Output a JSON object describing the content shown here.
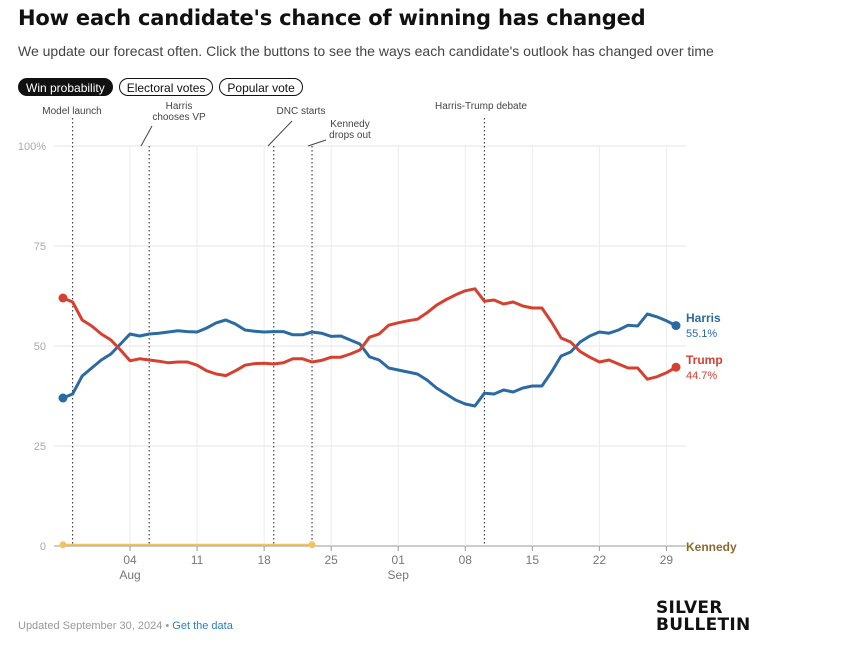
{
  "title": "How each candidate's chance of winning has changed",
  "subtitle": "We update our forecast often. Click the buttons to see the ways each candidate's outlook has changed over time",
  "tabs": [
    {
      "label": "Win probability",
      "active": true
    },
    {
      "label": "Electoral votes",
      "active": false
    },
    {
      "label": "Popular vote",
      "active": false
    }
  ],
  "footer": {
    "updated": "Updated September 30, 2024",
    "separator": " • ",
    "link_label": "Get the data"
  },
  "logo": {
    "line1": "SILVER",
    "line2": "BULLETIN"
  },
  "chart_data": {
    "type": "line",
    "ylim": [
      0,
      100
    ],
    "xlim": [
      "2024-07-28",
      "2024-09-30"
    ],
    "y_ticks": [
      0,
      25,
      50,
      75,
      100
    ],
    "y_tick_labels": [
      "0",
      "25",
      "50",
      "75",
      "100%"
    ],
    "x_ticks": [
      {
        "date": "2024-08-04",
        "label": "04",
        "month": "Aug"
      },
      {
        "date": "2024-08-11",
        "label": "11",
        "month": ""
      },
      {
        "date": "2024-08-18",
        "label": "18",
        "month": ""
      },
      {
        "date": "2024-08-25",
        "label": "25",
        "month": ""
      },
      {
        "date": "2024-09-01",
        "label": "01",
        "month": "Sep"
      },
      {
        "date": "2024-09-08",
        "label": "08",
        "month": ""
      },
      {
        "date": "2024-09-15",
        "label": "15",
        "month": ""
      },
      {
        "date": "2024-09-22",
        "label": "22",
        "month": ""
      },
      {
        "date": "2024-09-29",
        "label": "29",
        "month": ""
      }
    ],
    "annotations": [
      {
        "date": "2024-07-29",
        "lines": [
          "Model launch"
        ]
      },
      {
        "date": "2024-08-06",
        "lines": [
          "Harris",
          "chooses VP"
        ]
      },
      {
        "date": "2024-08-19",
        "lines": [
          "DNC starts"
        ]
      },
      {
        "date": "2024-08-23",
        "lines": [
          "Kennedy",
          "drops out"
        ]
      },
      {
        "date": "2024-09-10",
        "lines": [
          "Harris-Trump debate"
        ]
      }
    ],
    "series": [
      {
        "name": "Harris",
        "color": "#2b6aa3",
        "last_label": "55.1%",
        "points": [
          [
            "2024-07-28",
            37.0
          ],
          [
            "2024-07-29",
            38.0
          ],
          [
            "2024-07-30",
            42.5
          ],
          [
            "2024-07-31",
            44.5
          ],
          [
            "2024-08-01",
            46.5
          ],
          [
            "2024-08-02",
            48.0
          ],
          [
            "2024-08-03",
            50.5
          ],
          [
            "2024-08-04",
            53.0
          ],
          [
            "2024-08-05",
            52.5
          ],
          [
            "2024-08-06",
            53.0
          ],
          [
            "2024-08-07",
            53.2
          ],
          [
            "2024-08-08",
            53.5
          ],
          [
            "2024-08-09",
            53.8
          ],
          [
            "2024-08-10",
            53.6
          ],
          [
            "2024-08-11",
            53.5
          ],
          [
            "2024-08-12",
            54.5
          ],
          [
            "2024-08-13",
            55.8
          ],
          [
            "2024-08-14",
            56.5
          ],
          [
            "2024-08-15",
            55.5
          ],
          [
            "2024-08-16",
            54.0
          ],
          [
            "2024-08-17",
            53.7
          ],
          [
            "2024-08-18",
            53.5
          ],
          [
            "2024-08-19",
            53.6
          ],
          [
            "2024-08-20",
            53.6
          ],
          [
            "2024-08-21",
            52.8
          ],
          [
            "2024-08-22",
            52.8
          ],
          [
            "2024-08-23",
            53.5
          ],
          [
            "2024-08-24",
            53.2
          ],
          [
            "2024-08-25",
            52.4
          ],
          [
            "2024-08-26",
            52.5
          ],
          [
            "2024-08-27",
            51.5
          ],
          [
            "2024-08-28",
            50.5
          ],
          [
            "2024-08-29",
            47.3
          ],
          [
            "2024-08-30",
            46.5
          ],
          [
            "2024-08-31",
            44.5
          ],
          [
            "2024-09-01",
            44.0
          ],
          [
            "2024-09-02",
            43.5
          ],
          [
            "2024-09-03",
            43.0
          ],
          [
            "2024-09-04",
            41.5
          ],
          [
            "2024-09-05",
            39.5
          ],
          [
            "2024-09-06",
            38.0
          ],
          [
            "2024-09-07",
            36.5
          ],
          [
            "2024-09-08",
            35.5
          ],
          [
            "2024-09-09",
            35.0
          ],
          [
            "2024-09-10",
            38.2
          ],
          [
            "2024-09-11",
            38.0
          ],
          [
            "2024-09-12",
            39.0
          ],
          [
            "2024-09-13",
            38.5
          ],
          [
            "2024-09-14",
            39.5
          ],
          [
            "2024-09-15",
            40.0
          ],
          [
            "2024-09-16",
            40.0
          ],
          [
            "2024-09-17",
            43.5
          ],
          [
            "2024-09-18",
            47.5
          ],
          [
            "2024-09-19",
            48.5
          ],
          [
            "2024-09-20",
            51.0
          ],
          [
            "2024-09-21",
            52.5
          ],
          [
            "2024-09-22",
            53.5
          ],
          [
            "2024-09-23",
            53.2
          ],
          [
            "2024-09-24",
            54.0
          ],
          [
            "2024-09-25",
            55.2
          ],
          [
            "2024-09-26",
            55.0
          ],
          [
            "2024-09-27",
            58.0
          ],
          [
            "2024-09-28",
            57.3
          ],
          [
            "2024-09-29",
            56.3
          ],
          [
            "2024-09-30",
            55.1
          ]
        ]
      },
      {
        "name": "Trump",
        "color": "#d6402f",
        "last_label": "44.7%",
        "points": [
          [
            "2024-07-28",
            62.0
          ],
          [
            "2024-07-29",
            61.0
          ],
          [
            "2024-07-30",
            56.5
          ],
          [
            "2024-07-31",
            55.0
          ],
          [
            "2024-08-01",
            53.0
          ],
          [
            "2024-08-02",
            51.5
          ],
          [
            "2024-08-03",
            49.0
          ],
          [
            "2024-08-04",
            46.3
          ],
          [
            "2024-08-05",
            46.8
          ],
          [
            "2024-08-06",
            46.5
          ],
          [
            "2024-08-07",
            46.2
          ],
          [
            "2024-08-08",
            45.8
          ],
          [
            "2024-08-09",
            46.0
          ],
          [
            "2024-08-10",
            46.0
          ],
          [
            "2024-08-11",
            45.2
          ],
          [
            "2024-08-12",
            43.8
          ],
          [
            "2024-08-13",
            43.0
          ],
          [
            "2024-08-14",
            42.6
          ],
          [
            "2024-08-15",
            43.8
          ],
          [
            "2024-08-16",
            45.2
          ],
          [
            "2024-08-17",
            45.6
          ],
          [
            "2024-08-18",
            45.7
          ],
          [
            "2024-08-19",
            45.5
          ],
          [
            "2024-08-20",
            45.8
          ],
          [
            "2024-08-21",
            46.8
          ],
          [
            "2024-08-22",
            46.8
          ],
          [
            "2024-08-23",
            46.0
          ],
          [
            "2024-08-24",
            46.4
          ],
          [
            "2024-08-25",
            47.2
          ],
          [
            "2024-08-26",
            47.2
          ],
          [
            "2024-08-27",
            48.0
          ],
          [
            "2024-08-28",
            49.0
          ],
          [
            "2024-08-29",
            52.2
          ],
          [
            "2024-08-30",
            53.0
          ],
          [
            "2024-08-31",
            55.2
          ],
          [
            "2024-09-01",
            55.8
          ],
          [
            "2024-09-02",
            56.3
          ],
          [
            "2024-09-03",
            56.7
          ],
          [
            "2024-09-04",
            58.3
          ],
          [
            "2024-09-05",
            60.2
          ],
          [
            "2024-09-06",
            61.6
          ],
          [
            "2024-09-07",
            62.8
          ],
          [
            "2024-09-08",
            63.8
          ],
          [
            "2024-09-09",
            64.3
          ],
          [
            "2024-09-10",
            61.2
          ],
          [
            "2024-09-11",
            61.5
          ],
          [
            "2024-09-12",
            60.5
          ],
          [
            "2024-09-13",
            61.0
          ],
          [
            "2024-09-14",
            60.0
          ],
          [
            "2024-09-15",
            59.5
          ],
          [
            "2024-09-16",
            59.5
          ],
          [
            "2024-09-17",
            56.0
          ],
          [
            "2024-09-18",
            52.0
          ],
          [
            "2024-09-19",
            51.0
          ],
          [
            "2024-09-20",
            48.6
          ],
          [
            "2024-09-21",
            47.2
          ],
          [
            "2024-09-22",
            46.0
          ],
          [
            "2024-09-23",
            46.5
          ],
          [
            "2024-09-24",
            45.5
          ],
          [
            "2024-09-25",
            44.5
          ],
          [
            "2024-09-26",
            44.5
          ],
          [
            "2024-09-27",
            41.7
          ],
          [
            "2024-09-28",
            42.3
          ],
          [
            "2024-09-29",
            43.3
          ],
          [
            "2024-09-30",
            44.7
          ]
        ]
      },
      {
        "name": "Kennedy",
        "color": "#f2c45a",
        "label_color": "#8a6a2e",
        "last_label": "",
        "points": [
          [
            "2024-07-28",
            0.3
          ],
          [
            "2024-08-23",
            0.3
          ]
        ]
      }
    ]
  }
}
